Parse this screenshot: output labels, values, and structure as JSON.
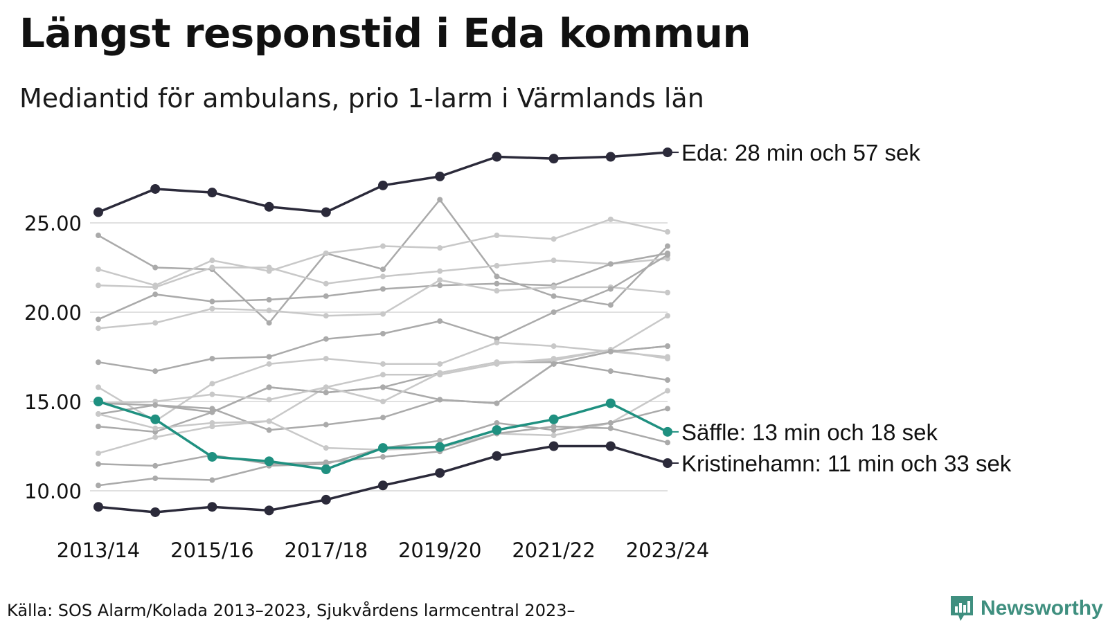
{
  "header": {
    "title": "Längst responstid i Eda kommun",
    "subtitle": "Mediantid för ambulans, prio 1-larm i Värmlands län"
  },
  "footer": {
    "source": "Källa: SOS Alarm/Kolada 2013–2023, Sjukvårdens larmcentral 2023–",
    "brand": "Newsworthy"
  },
  "chart_data": {
    "type": "line",
    "x": [
      "2013/14",
      "2014/15",
      "2015/16",
      "2016/17",
      "2017/18",
      "2018/19",
      "2019/20",
      "2020/21",
      "2021/22",
      "2022/23",
      "2023/24"
    ],
    "x_tick_labels": [
      "2013/14",
      "2015/16",
      "2017/18",
      "2019/20",
      "2021/22",
      "2023/24"
    ],
    "y_ticks": [
      "10.00",
      "15.00",
      "20.00",
      "25.00"
    ],
    "y_tick_values": [
      10,
      15,
      20,
      25
    ],
    "ylim": [
      8,
      30
    ],
    "grid": "horizontal",
    "highlight": [
      {
        "name": "Eda",
        "label": "Eda: 28 min och 57 sek",
        "color": "#2b2a3a",
        "values": [
          25.6,
          26.9,
          26.7,
          25.9,
          25.6,
          27.1,
          27.6,
          28.7,
          28.6,
          28.7,
          28.95
        ]
      },
      {
        "name": "Säffle",
        "label": "Säffle: 13 min och 18 sek",
        "color": "#1f9080",
        "values": [
          15.0,
          14.0,
          11.9,
          11.65,
          11.2,
          12.4,
          12.45,
          13.4,
          14.0,
          14.9,
          13.3
        ]
      },
      {
        "name": "Kristinehamn",
        "label": "Kristinehamn: 11 min och 33 sek",
        "color": "#2b2a3a",
        "values": [
          9.1,
          8.8,
          9.1,
          8.9,
          9.5,
          10.3,
          11.0,
          11.95,
          12.5,
          12.5,
          11.55
        ]
      }
    ],
    "background_series": [
      {
        "color": "#aaaaaa",
        "values": [
          24.3,
          22.5,
          22.4,
          19.4,
          23.3,
          22.4,
          26.3,
          22.0,
          20.9,
          20.4,
          23.7
        ]
      },
      {
        "color": "#c8c8c8",
        "values": [
          22.4,
          21.5,
          22.9,
          22.3,
          23.3,
          23.7,
          23.6,
          24.3,
          24.1,
          25.2,
          24.5
        ]
      },
      {
        "color": "#c8c8c8",
        "values": [
          21.5,
          21.4,
          22.5,
          22.5,
          21.6,
          22.0,
          22.3,
          22.6,
          22.9,
          22.7,
          23.0
        ]
      },
      {
        "color": "#aaaaaa",
        "values": [
          19.6,
          21.0,
          20.6,
          20.7,
          20.9,
          21.3,
          21.5,
          21.6,
          21.5,
          22.7,
          23.3
        ]
      },
      {
        "color": "#c8c8c8",
        "values": [
          19.1,
          19.4,
          20.2,
          20.1,
          19.8,
          19.9,
          21.8,
          21.2,
          21.4,
          21.4,
          21.1
        ]
      },
      {
        "color": "#aaaaaa",
        "values": [
          17.2,
          16.7,
          17.4,
          17.5,
          18.5,
          18.8,
          19.5,
          18.5,
          20.0,
          21.3,
          23.2
        ]
      },
      {
        "color": "#c8c8c8",
        "values": [
          15.8,
          13.9,
          16.0,
          17.1,
          17.4,
          17.1,
          17.1,
          18.3,
          18.1,
          17.8,
          17.5
        ]
      },
      {
        "color": "#aaaaaa",
        "values": [
          14.3,
          14.8,
          14.4,
          15.8,
          15.5,
          15.8,
          16.6,
          17.2,
          17.2,
          16.7,
          16.2
        ]
      },
      {
        "color": "#c8c8c8",
        "values": [
          12.1,
          13.0,
          13.6,
          13.9,
          15.8,
          16.5,
          16.5,
          17.1,
          17.4,
          17.9,
          19.8
        ]
      },
      {
        "color": "#aaaaaa",
        "values": [
          13.6,
          13.3,
          14.4,
          15.8,
          15.5,
          15.8,
          15.1,
          14.9,
          17.1,
          17.8,
          18.1
        ]
      },
      {
        "color": "#c8c8c8",
        "values": [
          14.9,
          15.0,
          15.4,
          15.1,
          15.8,
          15.0,
          16.6,
          17.2,
          17.3,
          17.9,
          17.4
        ]
      },
      {
        "color": "#aaaaaa",
        "values": [
          14.9,
          14.8,
          14.6,
          13.4,
          13.7,
          14.1,
          15.1,
          14.9,
          17.1,
          17.8,
          18.1
        ]
      },
      {
        "color": "#c8c8c8",
        "values": [
          14.3,
          13.5,
          13.8,
          13.9,
          12.4,
          12.3,
          12.4,
          13.2,
          13.1,
          13.8,
          15.6
        ]
      },
      {
        "color": "#aaaaaa",
        "values": [
          11.5,
          11.4,
          12.0,
          11.5,
          11.6,
          11.9,
          12.2,
          13.2,
          13.6,
          13.5,
          12.7
        ]
      },
      {
        "color": "#aaaaaa",
        "values": [
          10.3,
          10.7,
          10.6,
          11.4,
          11.5,
          12.4,
          12.8,
          13.8,
          13.4,
          13.8,
          14.6
        ]
      }
    ]
  }
}
